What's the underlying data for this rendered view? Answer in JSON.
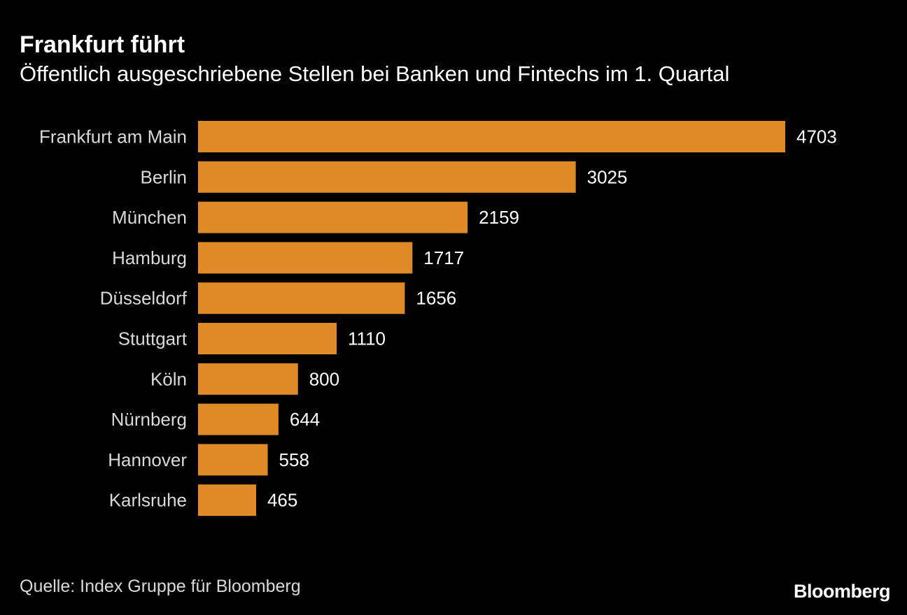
{
  "chart_data": {
    "type": "bar",
    "orientation": "horizontal",
    "title": "Frankfurt führt",
    "subtitle": "Öffentlich ausgeschriebene Stellen bei Banken und Fintechs im 1. Quartal",
    "categories": [
      "Frankfurt am Main",
      "Berlin",
      "München",
      "Hamburg",
      "Düsseldorf",
      "Stuttgart",
      "Köln",
      "Nürnberg",
      "Hannover",
      "Karlsruhe"
    ],
    "values": [
      4703,
      3025,
      2159,
      1717,
      1656,
      1110,
      800,
      644,
      558,
      465
    ],
    "value_labels": [
      "4703",
      "3025",
      "2159",
      "1717",
      "1656",
      "1110",
      "800",
      "644",
      "558",
      "465"
    ],
    "xlim": [
      0,
      4703
    ],
    "grid": false,
    "data_labels": true,
    "bar_color": "#e08a27"
  },
  "footer": {
    "source": "Quelle: Index Gruppe für Bloomberg",
    "brand": "Bloomberg"
  }
}
